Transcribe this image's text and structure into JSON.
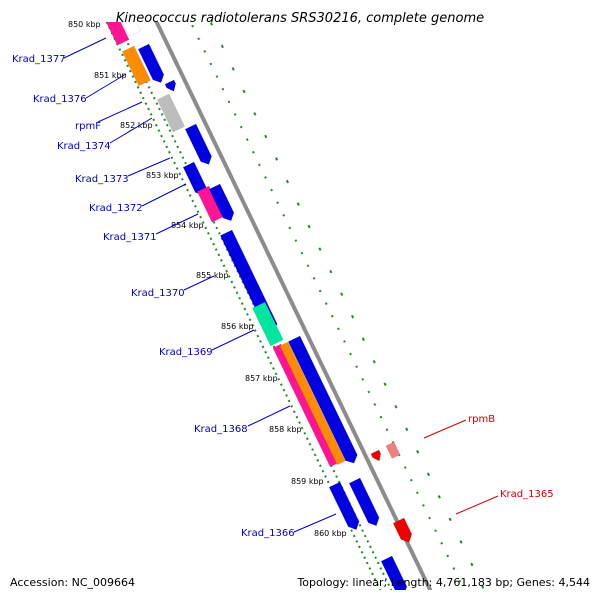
{
  "title": "Kineococcus radiotolerans SRS30216, complete genome",
  "footer": {
    "accession": "Accession: NC_009664",
    "summary": "Topology: linear; Length: 4,761,183 bp; Genes: 4,544"
  },
  "colors": {
    "label_blue": "#0000c8",
    "label_red": "#d00000",
    "axis_gray": "#8c8c8c",
    "tick_green": "#228b22",
    "gene_blue": "#0000e0",
    "gene_orange": "#ff8c00",
    "gene_pink": "#ff1493",
    "gene_gray": "#bdbdbd",
    "gene_teal": "#00e6a0",
    "gene_red": "#ee0000",
    "gene_salmon": "#f08080"
  },
  "kbp_ticks": [
    "850 kbp",
    "851 kbp",
    "852 kbp",
    "853 kbp",
    "854 kbp",
    "855 kbp",
    "856 kbp",
    "857 kbp",
    "858 kbp",
    "859 kbp",
    "860 kbp"
  ],
  "left_labels": [
    "Krad_1377",
    "Krad_1376",
    "rpmF",
    "Krad_1374",
    "Krad_1373",
    "Krad_1372",
    "Krad_1371",
    "Krad_1370",
    "Krad_1369",
    "Krad_1368",
    "Krad_1366"
  ],
  "right_labels": [
    "rpmB",
    "Krad_1365"
  ]
}
